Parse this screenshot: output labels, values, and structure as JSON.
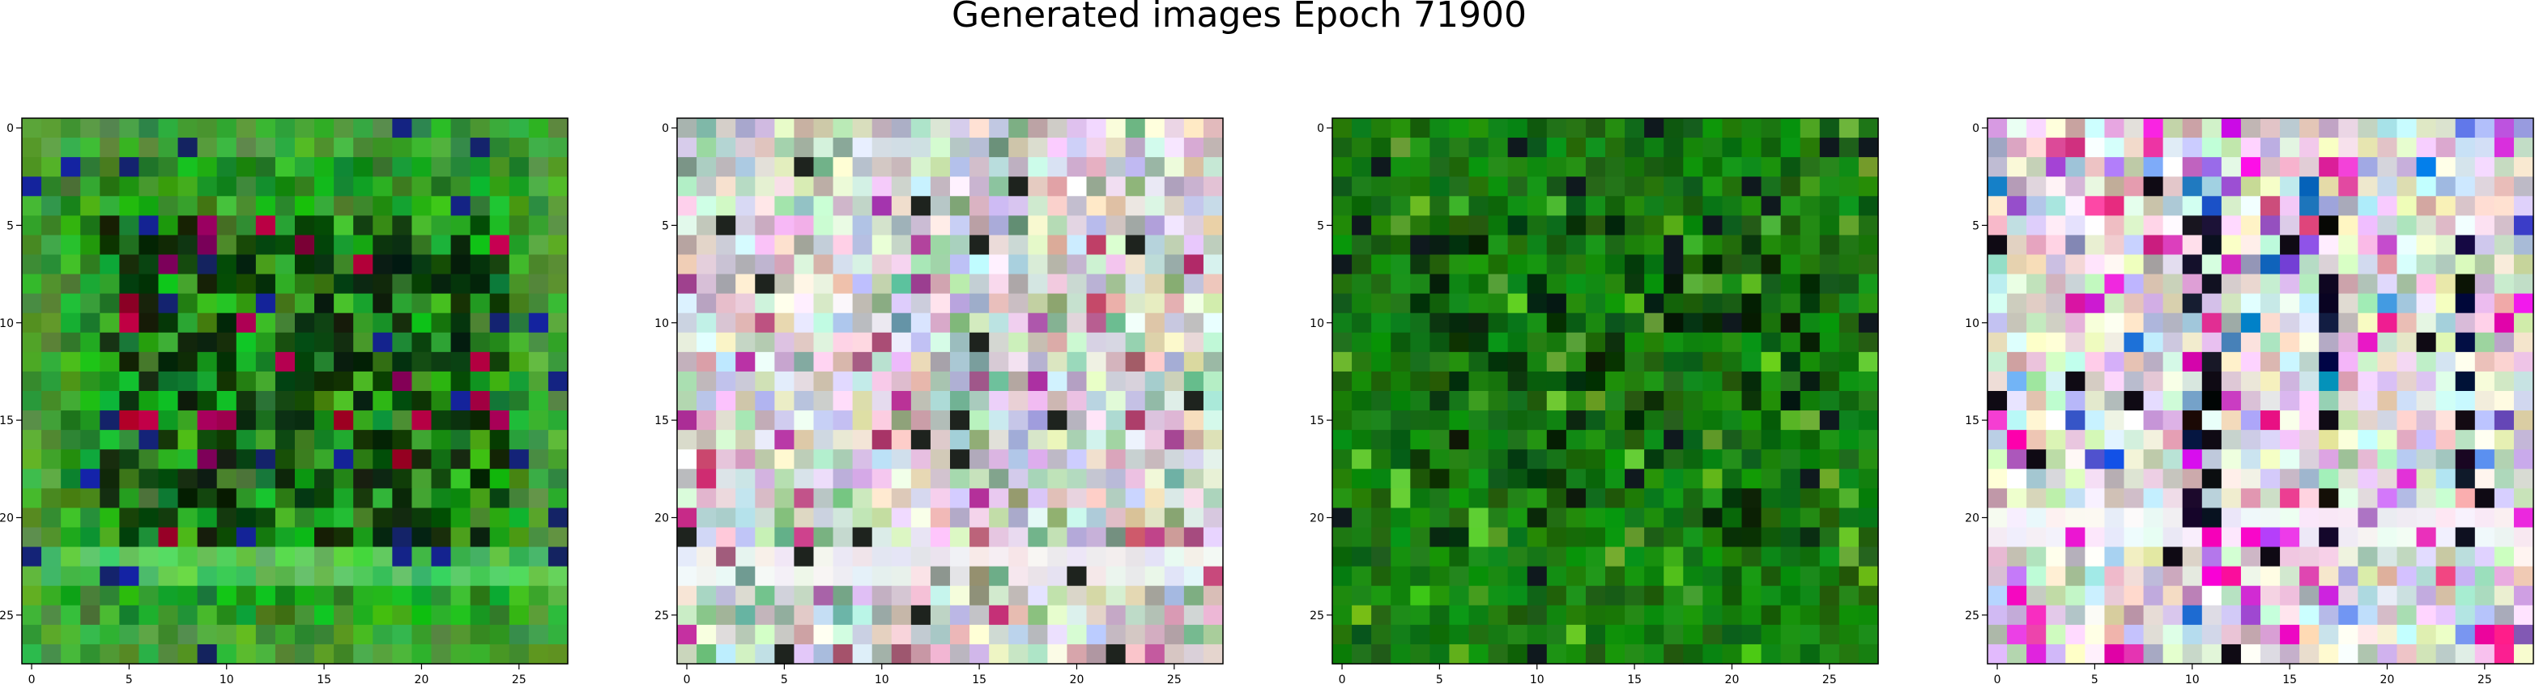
{
  "figure": {
    "title": "Generated images Epoch 71900"
  },
  "chart_data": [
    {
      "type": "heatmap",
      "title": "",
      "xlabel": "",
      "ylabel": "",
      "grid_size": [
        28,
        28
      ],
      "xlim": [
        -0.5,
        27.5
      ],
      "ylim": [
        27.5,
        -0.5
      ],
      "x_ticks": [
        0,
        5,
        10,
        15,
        20,
        25
      ],
      "y_ticks": [
        0,
        5,
        10,
        15,
        20,
        25
      ],
      "grid": false,
      "palette": "green",
      "frame_color": "#1c7e1c",
      "pattern_seed": 11
    },
    {
      "type": "heatmap",
      "title": "",
      "xlabel": "",
      "ylabel": "",
      "grid_size": [
        28,
        28
      ],
      "xlim": [
        -0.5,
        27.5
      ],
      "ylim": [
        27.5,
        -0.5
      ],
      "x_ticks": [
        0,
        5,
        10,
        15,
        20,
        25
      ],
      "y_ticks": [
        0,
        5,
        10,
        15,
        20,
        25
      ],
      "grid": false,
      "palette": "pastel",
      "frame_color": "#e7e3ea",
      "pattern_seed": 29
    },
    {
      "type": "heatmap",
      "title": "",
      "xlabel": "",
      "ylabel": "",
      "grid_size": [
        28,
        28
      ],
      "xlim": [
        -0.5,
        27.5
      ],
      "ylim": [
        27.5,
        -0.5
      ],
      "x_ticks": [
        0,
        5,
        10,
        15,
        20,
        25
      ],
      "y_ticks": [
        0,
        5,
        10,
        15,
        20,
        25
      ],
      "grid": false,
      "palette": "darkgreen",
      "frame_color": "#0f6a10",
      "pattern_seed": 37
    },
    {
      "type": "heatmap",
      "title": "",
      "xlabel": "",
      "ylabel": "",
      "grid_size": [
        28,
        28
      ],
      "xlim": [
        -0.5,
        27.5
      ],
      "ylim": [
        27.5,
        -0.5
      ],
      "x_ticks": [
        0,
        5,
        10,
        15,
        20,
        25
      ],
      "y_ticks": [
        0,
        5,
        10,
        15,
        20,
        25
      ],
      "grid": false,
      "palette": "mixed",
      "frame_color": "#f2f3f2",
      "pattern_seed": 53
    }
  ]
}
